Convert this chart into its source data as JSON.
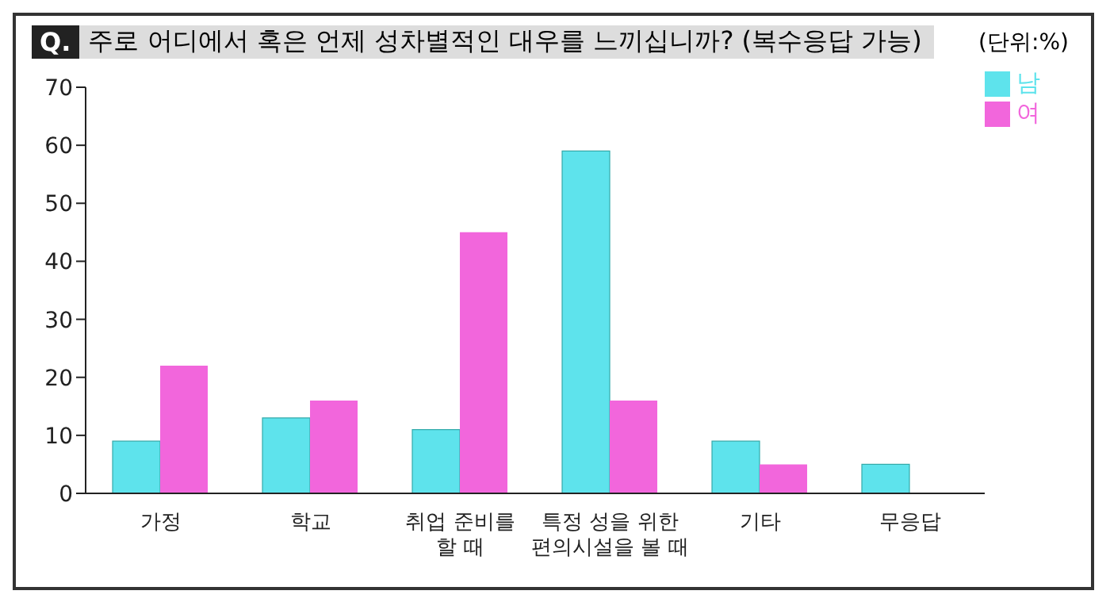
{
  "chart_data": {
    "type": "bar",
    "title": "Q. 주로 어디에서 혹은 언제 성차별적인 대우를 느끼십니까? (복수응답 가능)",
    "annotations": [
      "(단위:%)"
    ],
    "categories": [
      "가정",
      "학교",
      "취업 준비를\n할 때",
      "특정 성을 위한\n편의시설을 볼 때",
      "기타",
      "무응답"
    ],
    "series": [
      {
        "name": "남",
        "color": "#5ee3ec",
        "values": [
          9,
          13,
          11,
          59,
          9,
          5
        ]
      },
      {
        "name": "여",
        "color": "#f266dc",
        "values": [
          22,
          16,
          45,
          16,
          5,
          null
        ]
      }
    ],
    "ylim": [
      0,
      70
    ],
    "yticks": [
      0,
      10,
      20,
      30,
      40,
      50,
      60,
      70
    ],
    "grid": false,
    "legend": "top right"
  }
}
